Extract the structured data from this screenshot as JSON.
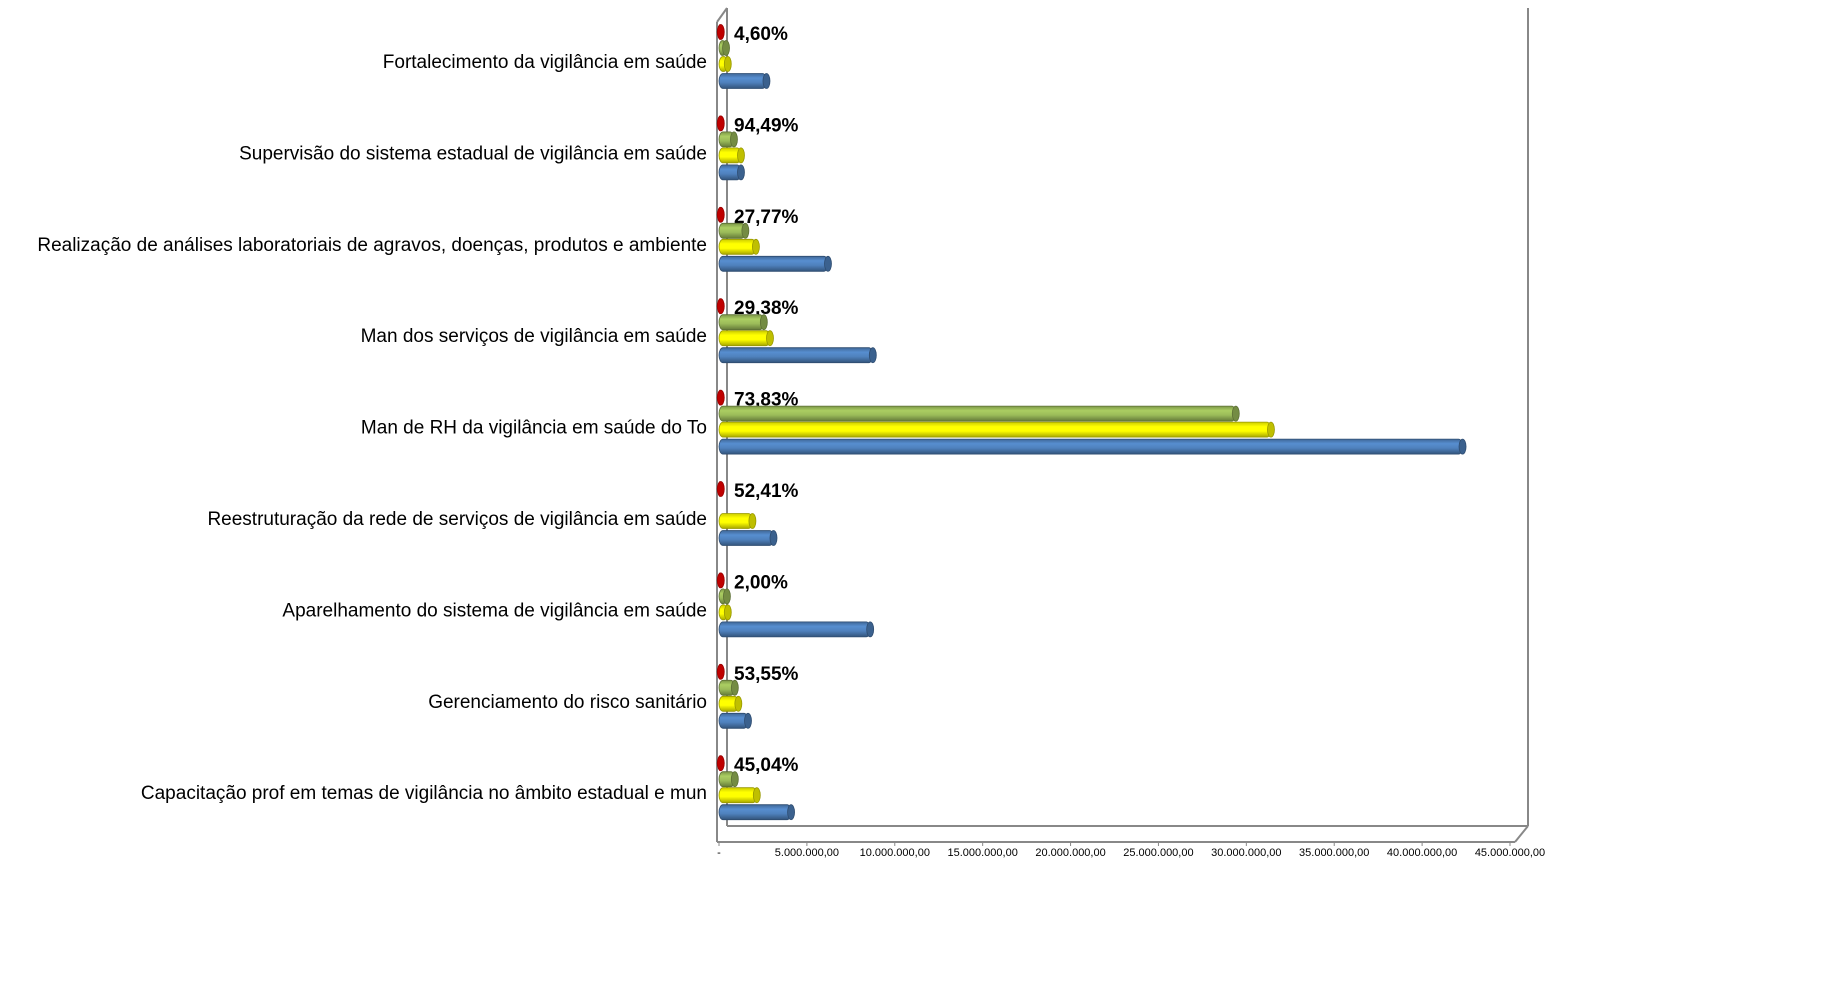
{
  "chart_data": {
    "type": "bar",
    "orientation": "horizontal",
    "categories": [
      "Fortalecimento da vigilância em saúde",
      "Supervisão do sistema estadual de vigilância em saúde",
      "Realização de análises laboratoriais de agravos, doenças, produtos e ambiente",
      "Man dos serviços de vigilância em saúde",
      "Man de RH da vigilância em saúde do To",
      "Reestruturação da rede de serviços de vigilância em saúde",
      "Aparelhamento do sistema de vigilância em saúde",
      "Gerenciamento do risco sanitário",
      "Capacitação prof em temas de vigilância no âmbito estadual e mun"
    ],
    "annotations": [
      "4,60%",
      "94,49%",
      "27,77%",
      "29,38%",
      "73,83%",
      "52,41%",
      "2,00%",
      "53,55%",
      "45,04%"
    ],
    "series": [
      {
        "color": "#ff0000",
        "values": [
          100000,
          100000,
          100000,
          100000,
          100000,
          100000,
          100000,
          100000,
          100000
        ]
      },
      {
        "color": "#9bbb59",
        "values": [
          400000,
          850000,
          1500000,
          2550000,
          29400000,
          0,
          450000,
          900000,
          900000
        ]
      },
      {
        "color": "#ffff00",
        "values": [
          500000,
          1250000,
          2100000,
          2900000,
          31400000,
          1900000,
          500000,
          1100000,
          2150000
        ]
      },
      {
        "color": "#4f81bd",
        "values": [
          2700000,
          1250000,
          6200000,
          8750000,
          42300000,
          3100000,
          8600000,
          1650000,
          4100000
        ]
      }
    ],
    "xlim": [
      0,
      45000000
    ],
    "xticks": [
      {
        "value": 0,
        "label": "-"
      },
      {
        "value": 5000000,
        "label": "5.000.000,00"
      },
      {
        "value": 10000000,
        "label": "10.000.000,00"
      },
      {
        "value": 15000000,
        "label": "15.000.000,00"
      },
      {
        "value": 20000000,
        "label": "20.000.000,00"
      },
      {
        "value": 25000000,
        "label": "25.000.000,00"
      },
      {
        "value": 30000000,
        "label": "30.000.000,00"
      },
      {
        "value": 35000000,
        "label": "35.000.000,00"
      },
      {
        "value": 40000000,
        "label": "40.000.000,00"
      },
      {
        "value": 45000000,
        "label": "45.000.000,00"
      }
    ]
  }
}
